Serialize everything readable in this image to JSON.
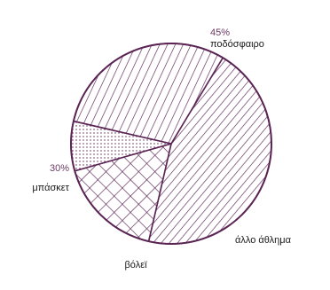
{
  "chart_data": {
    "type": "pie",
    "slices": [
      {
        "label": "ποδόσφαιρο",
        "value": 45,
        "value_label": "45%",
        "fill": "diagonal-hatch-dense"
      },
      {
        "label": "άλλο άθλημα",
        "value": 17,
        "value_label": "",
        "fill": "crosshatch"
      },
      {
        "label": "βόλεϊ",
        "value": 8,
        "value_label": "",
        "fill": "dots"
      },
      {
        "label": "μπάσκετ",
        "value": 30,
        "value_label": "30%",
        "fill": "diagonal-hatch-steep"
      }
    ],
    "colors": {
      "outline": "#5a2454",
      "percent_text": "#6b3a64",
      "label_text": "#1a1a1a"
    }
  }
}
